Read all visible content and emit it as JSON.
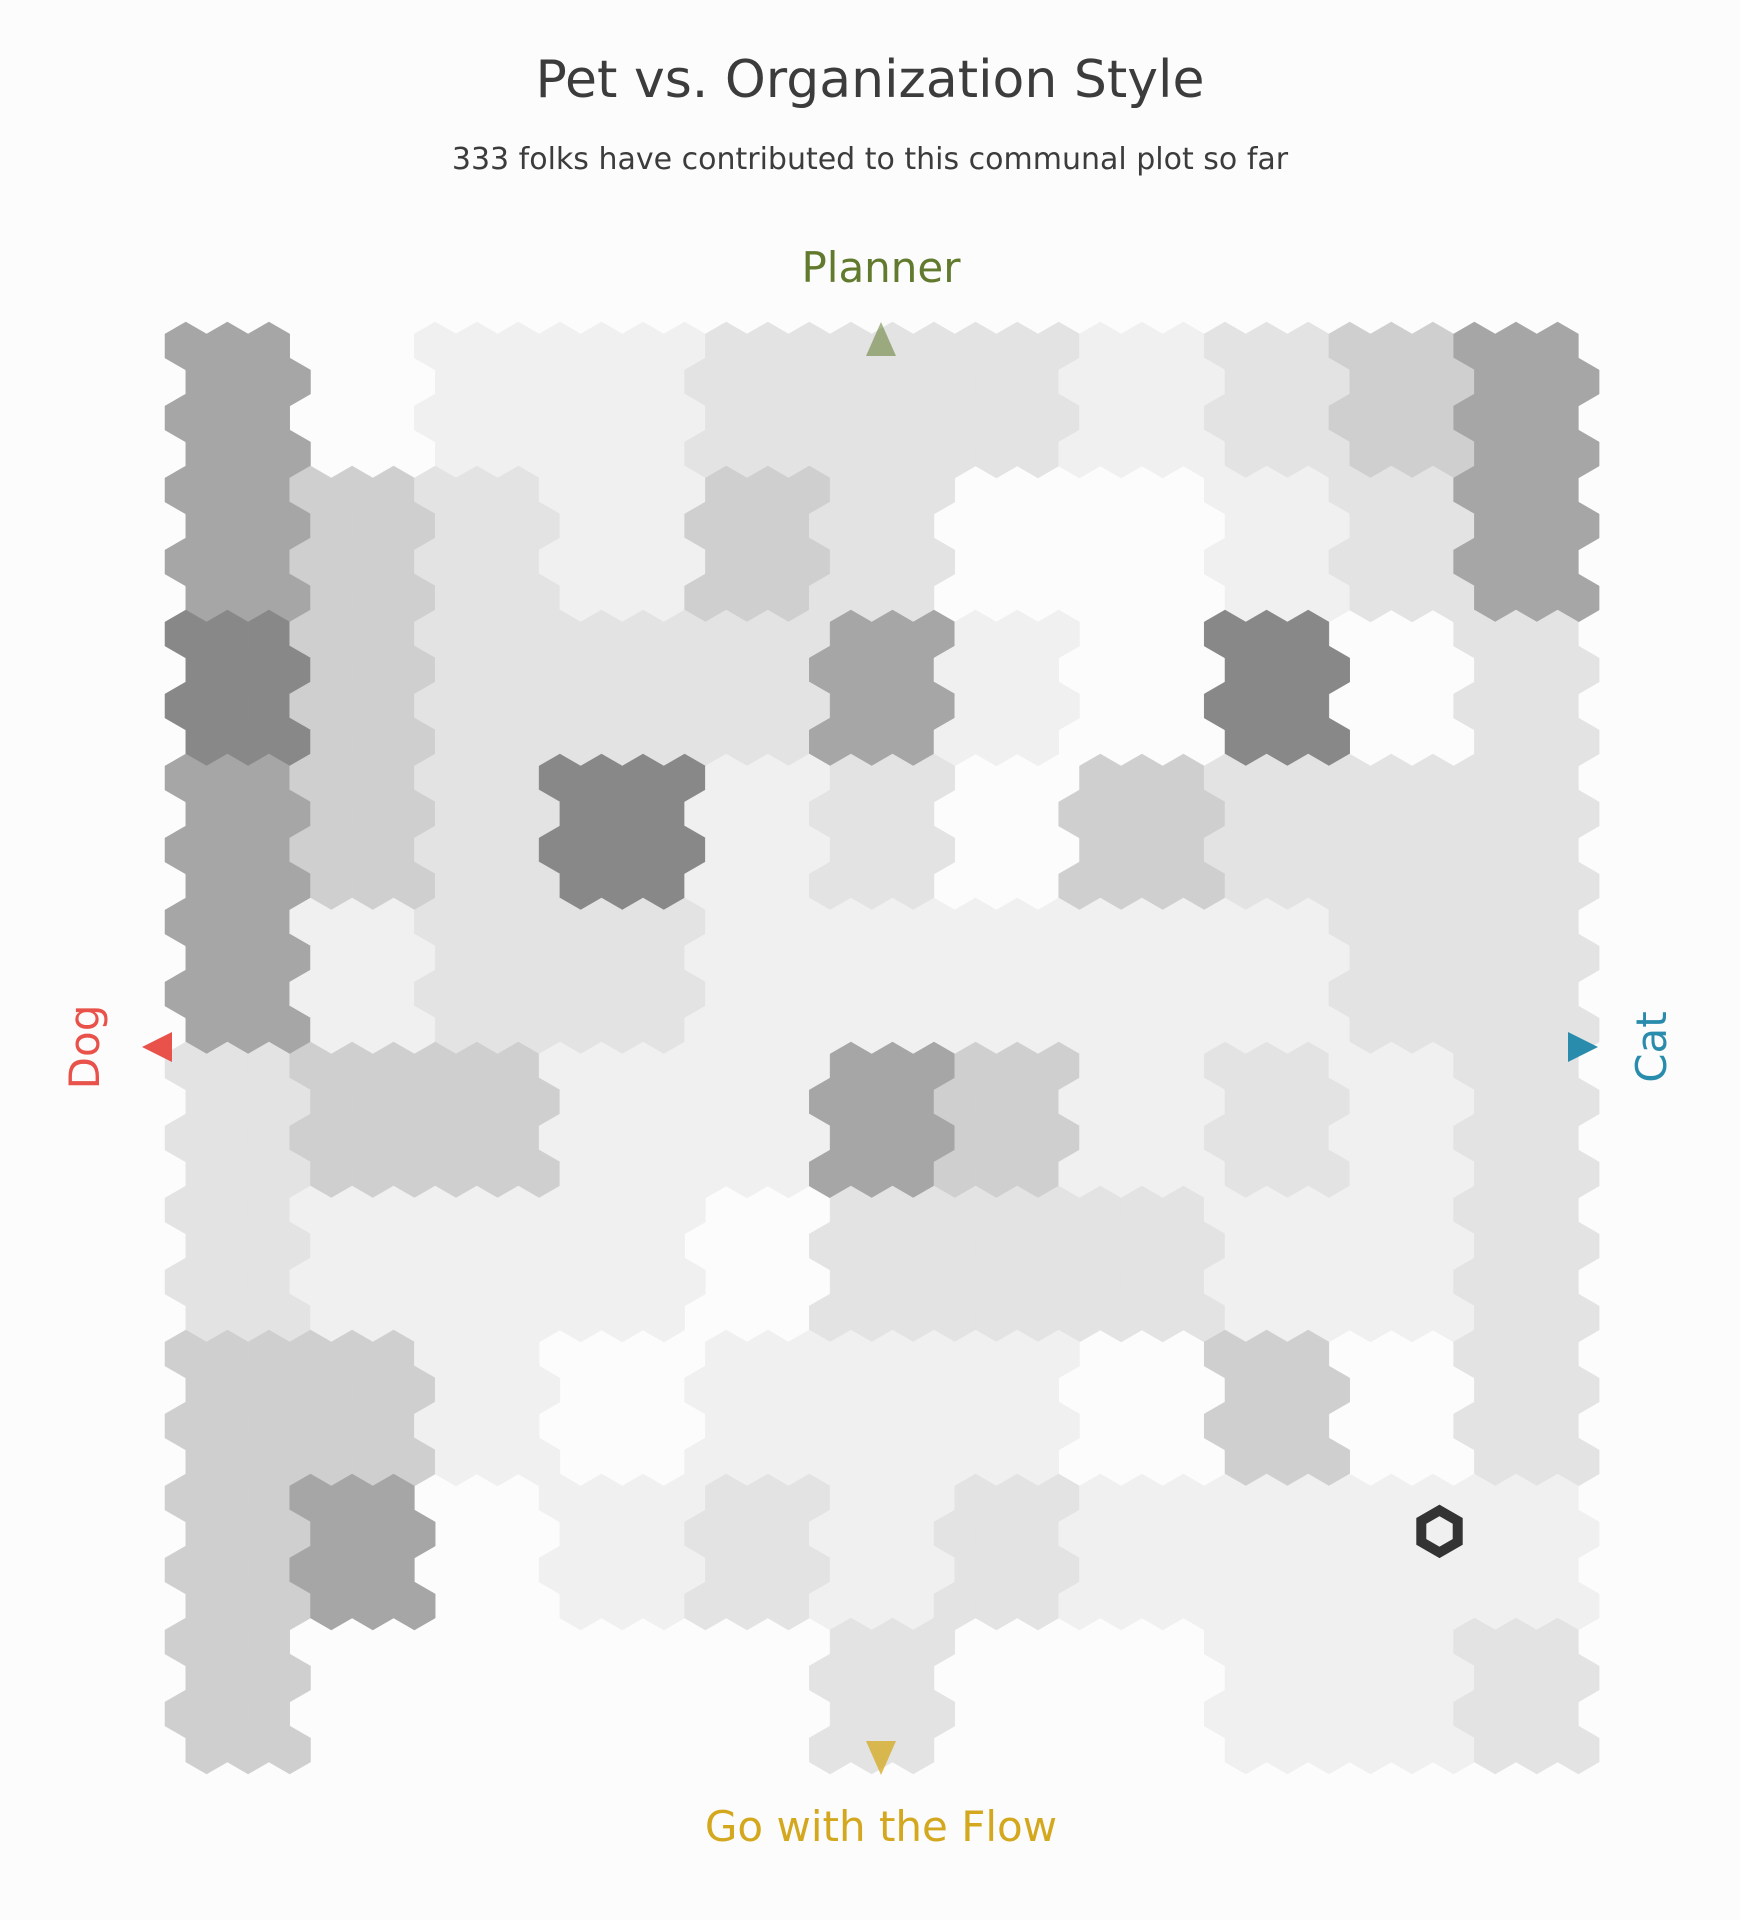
{
  "chart_data": {
    "type": "heatmap",
    "title": "Pet vs. Organization Style",
    "subtitle": "333 folks have contributed to this communal plot so far",
    "axes": {
      "x": {
        "left_label": "Dog",
        "right_label": "Cat",
        "range": [
          -1,
          1
        ]
      },
      "y": {
        "top_label": "Planner",
        "bottom_label": "Go with the Flow",
        "range": [
          -1,
          1
        ]
      }
    },
    "grid": false,
    "legend": "none",
    "colors": {
      "dog": "#e8524a",
      "cat": "#2a8cad",
      "planner": "#617a2e",
      "flow": "#d4a81e",
      "marker": "#333333"
    },
    "columns": 11,
    "rows": 10,
    "density_scale": "0 = none, 5 = darkest",
    "density": [
      [
        4,
        0,
        1,
        1,
        2,
        2,
        2,
        1,
        2,
        3,
        4
      ],
      [
        4,
        3,
        2,
        1,
        3,
        2,
        0,
        0,
        1,
        2,
        4
      ],
      [
        5,
        3,
        2,
        2,
        2,
        4,
        1,
        0,
        5,
        0,
        2
      ],
      [
        4,
        3,
        2,
        5,
        1,
        2,
        0,
        3,
        2,
        2,
        2
      ],
      [
        4,
        1,
        2,
        2,
        1,
        1,
        1,
        1,
        1,
        2,
        2
      ],
      [
        2,
        3,
        3,
        1,
        1,
        4,
        3,
        1,
        2,
        1,
        2
      ],
      [
        2,
        1,
        1,
        1,
        0,
        2,
        2,
        2,
        1,
        1,
        2
      ],
      [
        3,
        3,
        1,
        0,
        1,
        1,
        1,
        0,
        3,
        0,
        2
      ],
      [
        3,
        4,
        0,
        1,
        2,
        1,
        2,
        1,
        1,
        1,
        1
      ],
      [
        3,
        0,
        0,
        0,
        0,
        2,
        0,
        0,
        1,
        1,
        2
      ]
    ],
    "current_response": {
      "x": 0.78,
      "y": -0.67
    }
  }
}
